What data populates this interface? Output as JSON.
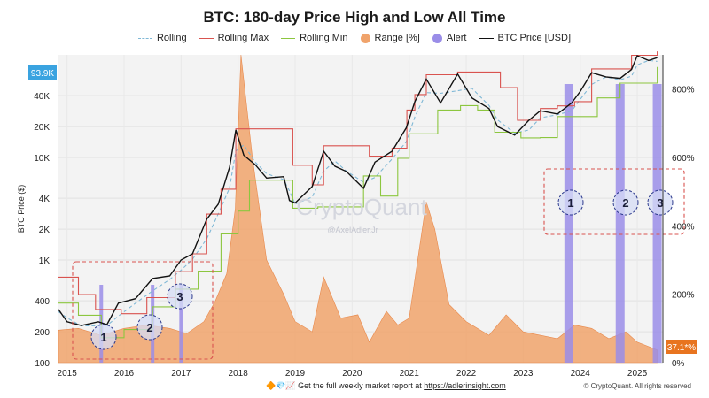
{
  "chart_data": {
    "type": "line",
    "title": "BTC: 180-day Price High and Low All Time",
    "ylabel": "BTC Price ($)",
    "y_scale": "log",
    "ylim": [
      100,
      100000
    ],
    "y2lim": [
      0,
      900
    ],
    "x_ticks": [
      "2015",
      "2016",
      "2017",
      "2018",
      "2019",
      "2020",
      "2021",
      "2022",
      "2023",
      "2024",
      "2025"
    ],
    "y_ticks": [
      "40K",
      "20K",
      "10K",
      "4K",
      "2K",
      "1K",
      "400",
      "200",
      "100"
    ],
    "y2_ticks": [
      "800%",
      "600%",
      "400%",
      "200%",
      "0%"
    ],
    "current_price_label": "93.9K",
    "current_range_label": "37.1*%",
    "legend": [
      {
        "name": "Rolling",
        "style": "dashed",
        "color": "#7fb8d6"
      },
      {
        "name": "Rolling Max",
        "style": "line",
        "color": "#d9534f"
      },
      {
        "name": "Rolling Min",
        "style": "line",
        "color": "#8cc63f"
      },
      {
        "name": "Range [%]",
        "style": "dot",
        "color": "#f0a36b"
      },
      {
        "name": "Alert",
        "style": "dot",
        "color": "#9a8de8"
      },
      {
        "name": "BTC Price [USD]",
        "style": "line",
        "color": "#111111"
      }
    ],
    "series": [
      {
        "name": "BTC Price [USD]",
        "x": [
          2014.85,
          2015.0,
          2015.25,
          2015.55,
          2015.7,
          2015.9,
          2016.2,
          2016.5,
          2016.8,
          2017.0,
          2017.2,
          2017.45,
          2017.65,
          2017.85,
          2017.96,
          2018.1,
          2018.3,
          2018.5,
          2018.8,
          2018.9,
          2019.0,
          2019.3,
          2019.5,
          2019.7,
          2019.9,
          2020.2,
          2020.4,
          2020.7,
          2020.95,
          2021.1,
          2021.3,
          2021.55,
          2021.85,
          2022.1,
          2022.4,
          2022.55,
          2022.85,
          2023.1,
          2023.3,
          2023.6,
          2023.85,
          2024.0,
          2024.2,
          2024.45,
          2024.7,
          2024.9,
          2025.0,
          2025.2,
          2025.35
        ],
        "y": [
          330,
          250,
          230,
          250,
          235,
          380,
          420,
          660,
          700,
          1000,
          1150,
          2500,
          3500,
          8000,
          18500,
          10500,
          8500,
          6300,
          6500,
          3800,
          3600,
          5200,
          11500,
          8200,
          7300,
          5000,
          9000,
          11500,
          19500,
          35000,
          58000,
          34000,
          65000,
          38000,
          30000,
          20000,
          16500,
          23000,
          28500,
          26500,
          34000,
          44000,
          67000,
          61000,
          59000,
          72000,
          98000,
          88000,
          93900
        ]
      },
      {
        "name": "Rolling Max",
        "x": [
          2014.85,
          2015.2,
          2015.5,
          2015.95,
          2016.4,
          2016.9,
          2017.2,
          2017.45,
          2017.7,
          2017.96,
          2018.5,
          2018.96,
          2019.3,
          2019.5,
          2020.0,
          2020.3,
          2020.7,
          2020.96,
          2021.1,
          2021.3,
          2021.85,
          2022.4,
          2022.6,
          2022.9,
          2023.3,
          2023.6,
          2023.9,
          2024.2,
          2024.7,
          2024.9,
          2025.35
        ],
        "y": [
          680,
          460,
          330,
          300,
          430,
          770,
          1150,
          2800,
          4900,
          19000,
          19000,
          8400,
          5400,
          13000,
          13000,
          10300,
          12300,
          29000,
          41000,
          64000,
          68000,
          68000,
          48000,
          23000,
          30000,
          31800,
          35000,
          73000,
          73000,
          99000,
          108000
        ]
      },
      {
        "name": "Rolling Min",
        "x": [
          2014.85,
          2015.2,
          2015.6,
          2016.0,
          2016.5,
          2016.9,
          2017.3,
          2017.7,
          2018.0,
          2018.2,
          2018.45,
          2018.96,
          2019.4,
          2019.9,
          2020.2,
          2020.5,
          2020.8,
          2021.0,
          2021.5,
          2021.9,
          2022.2,
          2022.5,
          2022.96,
          2023.3,
          2023.6,
          2023.9,
          2024.3,
          2024.7,
          2024.96,
          2025.35
        ],
        "y": [
          380,
          290,
          175,
          210,
          350,
          520,
          780,
          1800,
          3000,
          6000,
          6000,
          3200,
          3300,
          3300,
          6600,
          4200,
          9800,
          17000,
          29000,
          32000,
          29000,
          17600,
          15500,
          15600,
          25000,
          25000,
          38000,
          53000,
          53000,
          76000
        ]
      }
    ],
    "range_series": {
      "name": "Range [%]",
      "x": [
        2014.85,
        2015.2,
        2015.6,
        2016.0,
        2016.4,
        2016.8,
        2017.1,
        2017.4,
        2017.6,
        2017.8,
        2017.95,
        2018.05,
        2018.25,
        2018.5,
        2018.8,
        2019.0,
        2019.3,
        2019.5,
        2019.8,
        2020.1,
        2020.3,
        2020.6,
        2020.8,
        2021.0,
        2021.15,
        2021.3,
        2021.45,
        2021.7,
        2022.0,
        2022.4,
        2022.7,
        2023.0,
        2023.3,
        2023.6,
        2023.9,
        2024.2,
        2024.5,
        2024.8,
        2025.0,
        2025.35
      ],
      "y": [
        95,
        100,
        80,
        100,
        110,
        100,
        85,
        120,
        180,
        260,
        450,
        900,
        600,
        300,
        200,
        120,
        90,
        250,
        130,
        140,
        60,
        150,
        110,
        130,
        300,
        470,
        390,
        170,
        120,
        80,
        140,
        90,
        80,
        70,
        110,
        100,
        70,
        90,
        60,
        37.1
      ]
    },
    "alerts": [
      {
        "label": "1",
        "x": 2015.6
      },
      {
        "label": "2",
        "x": 2016.5
      },
      {
        "label": "3",
        "x": 2017.0
      },
      {
        "label": "1",
        "x": 2023.8
      },
      {
        "label": "2",
        "x": 2024.7
      },
      {
        "label": "3",
        "x": 2025.35
      }
    ]
  },
  "footer": {
    "text": "Get the full weekly market report at",
    "link": "https://adlerinsight.com"
  },
  "copyright": "© CryptoQuant. All rights reserved",
  "watermark": {
    "brand": "CryptoQuant",
    "handle": "@AxelAdler.Jr"
  }
}
